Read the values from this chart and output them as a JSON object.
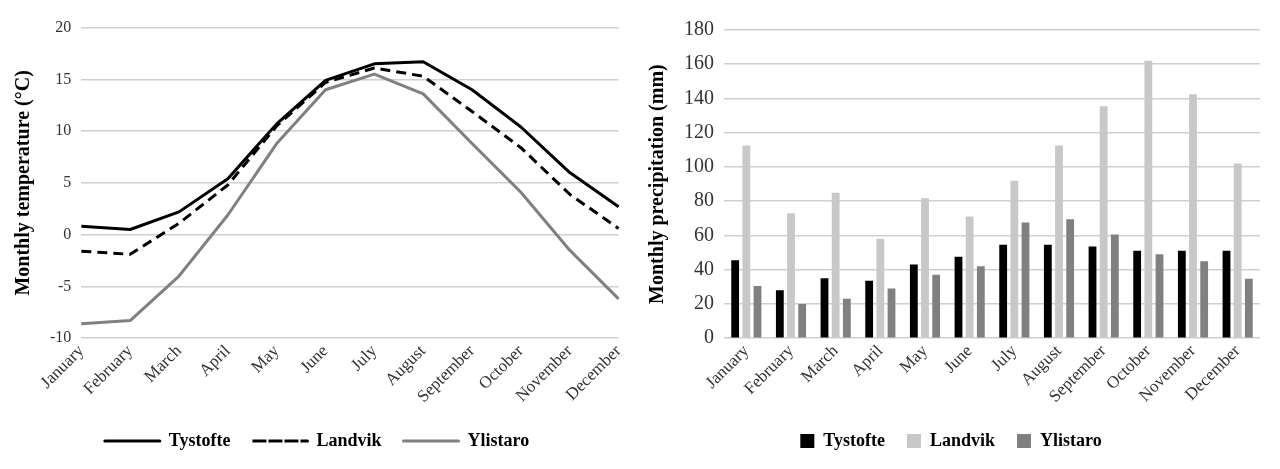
{
  "chart_data": [
    {
      "type": "line",
      "ylabel": "Monthly temperature (°C)",
      "categories": [
        "January",
        "February",
        "March",
        "April",
        "May",
        "June",
        "July",
        "August",
        "September",
        "October",
        "November",
        "December"
      ],
      "series": [
        {
          "name": "Tystofte",
          "color": "#000000",
          "line_style": "solid",
          "values": [
            0.8,
            0.5,
            2.2,
            5.4,
            10.7,
            14.9,
            16.5,
            16.7,
            14.0,
            10.4,
            6.0,
            2.7
          ]
        },
        {
          "name": "Landvik",
          "color": "#000000",
          "line_style": "dashed",
          "values": [
            -1.6,
            -1.9,
            1.1,
            4.8,
            10.5,
            14.7,
            16.1,
            15.3,
            11.9,
            8.4,
            3.9,
            0.6
          ]
        },
        {
          "name": "Ylistaro",
          "color": "#808080",
          "line_style": "solid",
          "values": [
            -8.6,
            -8.3,
            -4.0,
            1.9,
            8.8,
            14.0,
            15.5,
            13.6,
            8.8,
            4.1,
            -1.5,
            -6.2
          ]
        }
      ],
      "ylim": [
        -10,
        20
      ],
      "yticks": [
        -10,
        -5,
        0,
        5,
        10,
        15,
        20
      ],
      "grid": "y",
      "legend": "bottom",
      "marker": "none"
    },
    {
      "type": "bar",
      "ylabel": "Monthly precipitation (mm)",
      "categories": [
        "January",
        "February",
        "March",
        "April",
        "May",
        "June",
        "July",
        "August",
        "September",
        "October",
        "November",
        "December"
      ],
      "series": [
        {
          "name": "Tystofte",
          "color": "#000000",
          "values": [
            45.5,
            28,
            35,
            33.5,
            43,
            47.5,
            54.5,
            54.5,
            53.5,
            51,
            51,
            51
          ]
        },
        {
          "name": "Landvik",
          "color": "#c8c8c8",
          "values": [
            112.5,
            73,
            85,
            58,
            81.7,
            71,
            92,
            112.5,
            135.5,
            162,
            142.5,
            102
          ]
        },
        {
          "name": "Ylistaro",
          "color": "#808080",
          "values": [
            30.5,
            20,
            23,
            29,
            37,
            42,
            67.5,
            69.5,
            60.5,
            49,
            45,
            34.7
          ]
        }
      ],
      "ylim": [
        0,
        180
      ],
      "yticks": [
        0,
        20,
        40,
        60,
        80,
        100,
        120,
        140,
        160,
        180
      ],
      "grid": "y",
      "legend": "bottom"
    }
  ]
}
